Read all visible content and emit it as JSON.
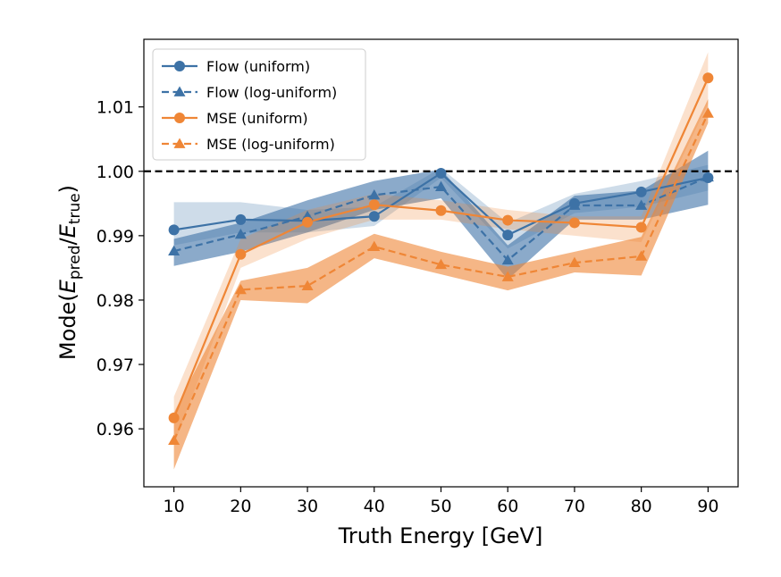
{
  "chart_data": {
    "type": "line",
    "xlabel": "Truth Energy [GeV]",
    "ylabel_main": "Mode(",
    "ylabel_E": "E",
    "ylabel_sub_pred": "pred",
    "ylabel_slash": "/",
    "ylabel_sub_true": "true",
    "ylabel_close": ")",
    "xlim": [
      5.5,
      94.5
    ],
    "ylim": [
      0.951,
      1.0205
    ],
    "xticks": [
      10,
      20,
      30,
      40,
      50,
      60,
      70,
      80,
      90
    ],
    "xtick_labels": [
      "10",
      "20",
      "30",
      "40",
      "50",
      "60",
      "70",
      "80",
      "90"
    ],
    "yticks": [
      0.96,
      0.97,
      0.98,
      0.99,
      1.0,
      1.01
    ],
    "ytick_labels": [
      "0.96",
      "0.97",
      "0.98",
      "0.99",
      "1.00",
      "1.01"
    ],
    "reference_line": {
      "y": 1.0,
      "style": "dashed",
      "color": "#000000"
    },
    "legend_position": "top-left",
    "x": [
      10,
      20,
      30,
      40,
      50,
      60,
      70,
      80,
      90
    ],
    "series": [
      {
        "name": "Flow (uniform)",
        "color": "#3d72a6",
        "linestyle": "solid",
        "marker": "circle",
        "values": [
          0.9909,
          0.9925,
          0.9923,
          0.993,
          0.9997,
          0.9901,
          0.995,
          0.9968,
          0.999
        ],
        "band_lower": [
          0.9885,
          0.9905,
          0.9905,
          0.9915,
          0.999,
          0.988,
          0.9935,
          0.9945,
          0.997
        ],
        "band_upper": [
          0.9952,
          0.9952,
          0.994,
          0.9945,
          1.0005,
          0.992,
          0.9965,
          0.9985,
          1.001
        ]
      },
      {
        "name": "Flow (log-uniform)",
        "color": "#3d72a6",
        "linestyle": "dashed",
        "marker": "triangle",
        "values": [
          0.9876,
          0.9902,
          0.993,
          0.9963,
          0.9976,
          0.9862,
          0.9947,
          0.9947,
          0.9991
        ],
        "band_lower": [
          0.9853,
          0.9875,
          0.9905,
          0.994,
          0.9958,
          0.9832,
          0.9925,
          0.9925,
          0.9948
        ],
        "band_upper": [
          0.9895,
          0.992,
          0.9955,
          0.9985,
          1.0003,
          0.9885,
          0.9962,
          0.997,
          1.0032
        ]
      },
      {
        "name": "MSE (uniform)",
        "color": "#ef8636",
        "linestyle": "solid",
        "marker": "circle",
        "values": [
          0.9617,
          0.9871,
          0.9921,
          0.9948,
          0.9939,
          0.9924,
          0.992,
          0.9913,
          1.0145
        ],
        "band_lower": [
          0.9575,
          0.985,
          0.9895,
          0.9925,
          0.9925,
          0.991,
          0.99,
          0.989,
          1.0105
        ],
        "band_upper": [
          0.965,
          0.9895,
          0.994,
          0.9965,
          0.9955,
          0.994,
          0.993,
          0.993,
          1.0185
        ]
      },
      {
        "name": "MSE (log-uniform)",
        "color": "#ef8636",
        "linestyle": "dashed",
        "marker": "triangle",
        "values": [
          0.9582,
          0.9816,
          0.9822,
          0.9883,
          0.9855,
          0.9836,
          0.9858,
          0.9868,
          1.009
        ],
        "band_lower": [
          0.9537,
          0.98,
          0.9795,
          0.9865,
          0.984,
          0.9815,
          0.9843,
          0.9838,
          1.0075
        ],
        "band_upper": [
          0.9625,
          0.983,
          0.985,
          0.9903,
          0.9875,
          0.9852,
          0.9875,
          0.9898,
          1.0112
        ]
      }
    ]
  }
}
